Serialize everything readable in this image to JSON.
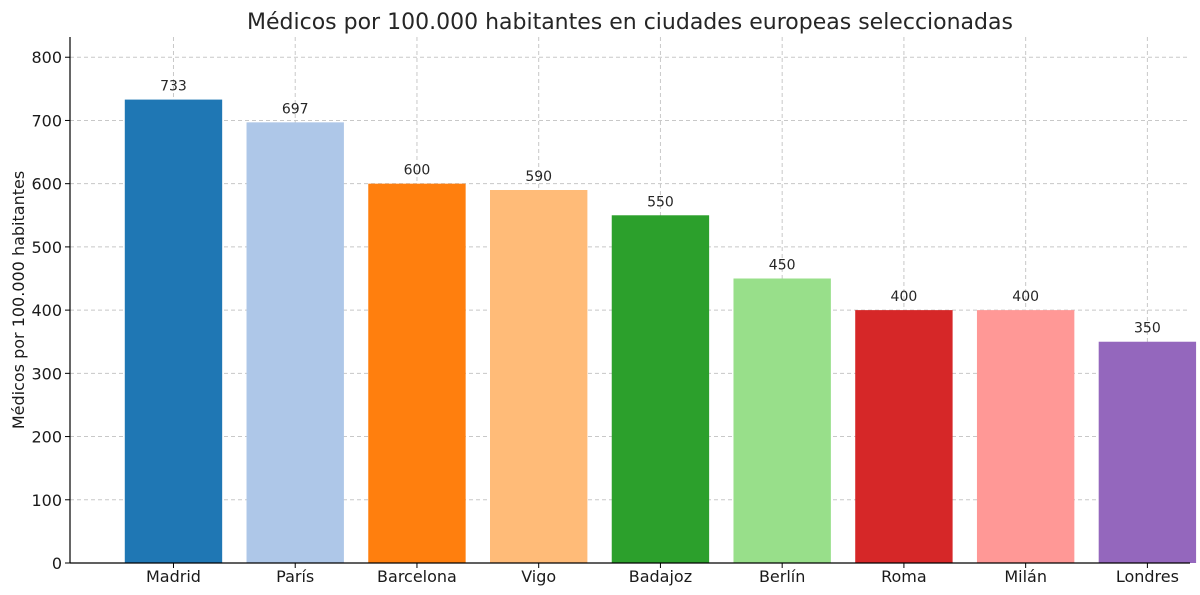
{
  "chart_data": {
    "type": "bar",
    "title": "Médicos por 100.000 habitantes en ciudades europeas seleccionadas",
    "xlabel": "",
    "ylabel": "Médicos por 100.000 habitantes",
    "categories": [
      "Madrid",
      "París",
      "Barcelona",
      "Vigo",
      "Badajoz",
      "Berlín",
      "Roma",
      "Milán",
      "Londres"
    ],
    "values": [
      733,
      697,
      600,
      590,
      550,
      450,
      400,
      400,
      350
    ],
    "colors": [
      "#1f77b4",
      "#aec7e8",
      "#ff7f0e",
      "#ffbb78",
      "#2ca02c",
      "#98df8a",
      "#d62728",
      "#ff9896",
      "#9467bd"
    ],
    "ylim": [
      0,
      832
    ],
    "yticks": [
      0,
      100,
      200,
      300,
      400,
      500,
      600,
      700,
      800
    ],
    "grid": true,
    "data_labels": true
  }
}
